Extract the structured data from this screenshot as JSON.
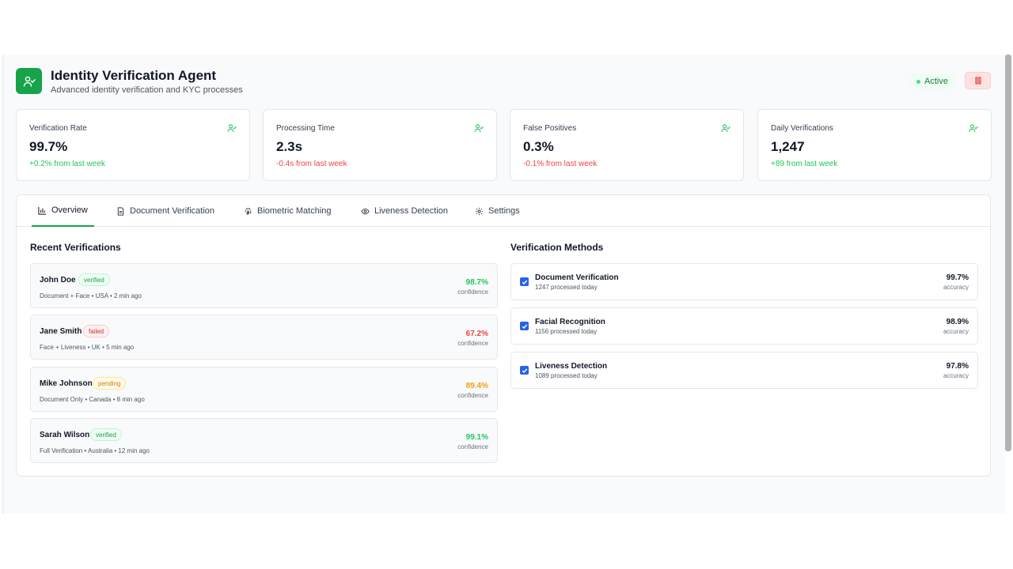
{
  "header": {
    "title": "Identity Verification Agent",
    "subtitle": "Advanced identity verification and KYC processes",
    "status": "Active",
    "logo_icon": "user-check-icon",
    "pause_icon": "pause-icon"
  },
  "colors": {
    "brand": "#16a34a",
    "positive": "#22c55e",
    "negative": "#ef4444",
    "pending": "#f59e0b",
    "checkbox": "#2563eb"
  },
  "metrics": [
    {
      "label": "Verification Rate",
      "value": "99.7%",
      "change": "+0.2% from last week",
      "trend": "positive"
    },
    {
      "label": "Processing Time",
      "value": "2.3s",
      "change": "-0.4s from last week",
      "trend": "negative"
    },
    {
      "label": "False Positives",
      "value": "0.3%",
      "change": "-0.1% from last week",
      "trend": "negative"
    },
    {
      "label": "Daily Verifications",
      "value": "1,247",
      "change": "+89 from last week",
      "trend": "positive"
    }
  ],
  "tabs": [
    {
      "label": "Overview",
      "icon": "bar-chart-icon",
      "active": true
    },
    {
      "label": "Document Verification",
      "icon": "document-icon"
    },
    {
      "label": "Biometric Matching",
      "icon": "fingerprint-icon"
    },
    {
      "label": "Liveness Detection",
      "icon": "eye-icon"
    },
    {
      "label": "Settings",
      "icon": "gear-icon"
    }
  ],
  "recent": {
    "title": "Recent Verifications",
    "confidence_label": "confidence",
    "items": [
      {
        "name": "John Doe",
        "status": "verified",
        "detail": "Document + Face • USA • 2 min ago",
        "confidence": "98.7%"
      },
      {
        "name": "Jane Smith",
        "status": "failed",
        "detail": "Face + Liveness • UK • 5 min ago",
        "confidence": "67.2%"
      },
      {
        "name": "Mike Johnson",
        "status": "pending",
        "detail": "Document Only • Canada • 8 min ago",
        "confidence": "89.4%"
      },
      {
        "name": "Sarah Wilson",
        "status": "verified",
        "detail": "Full Verification • Australia • 12 min ago",
        "confidence": "99.1%"
      }
    ]
  },
  "methods": {
    "title": "Verification Methods",
    "accuracy_label": "accuracy",
    "items": [
      {
        "name": "Document Verification",
        "processed": "1247 processed today",
        "accuracy": "99.7%",
        "checked": true
      },
      {
        "name": "Facial Recognition",
        "processed": "1156 processed today",
        "accuracy": "98.9%",
        "checked": true
      },
      {
        "name": "Liveness Detection",
        "processed": "1089 processed today",
        "accuracy": "97.8%",
        "checked": true
      }
    ]
  }
}
